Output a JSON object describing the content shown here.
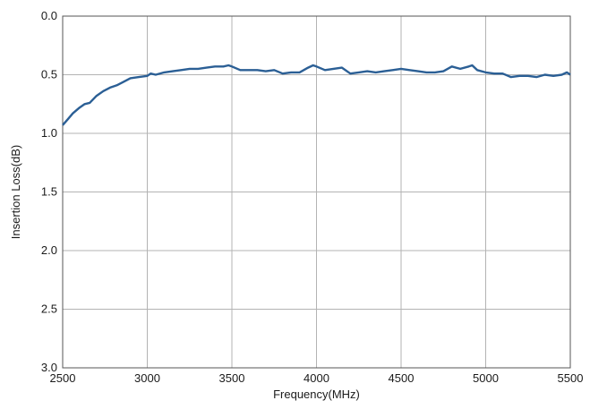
{
  "chart_data": {
    "type": "line",
    "title": "",
    "xlabel": "Frequency(MHz)",
    "ylabel": "Insertion Loss(dB)",
    "xlim": [
      2500,
      5500
    ],
    "ylim": [
      3.0,
      0.0
    ],
    "y_axis_inverted": true,
    "grid": true,
    "legend": "none",
    "x_ticks": [
      "2500",
      "3000",
      "3500",
      "4000",
      "4500",
      "5000",
      "5500"
    ],
    "y_ticks": [
      "0.0",
      "0.5",
      "1.0",
      "1.5",
      "2.0",
      "2.5",
      "3.0"
    ],
    "colors": {
      "line": "#2b5f95",
      "grid": "#b3b3b3",
      "frame": "#555555"
    },
    "series": [
      {
        "x": [
          2500,
          2530,
          2560,
          2600,
          2630,
          2660,
          2700,
          2740,
          2780,
          2820,
          2860,
          2900,
          2950,
          3000,
          3020,
          3050,
          3100,
          3150,
          3200,
          3250,
          3300,
          3350,
          3400,
          3450,
          3480,
          3500,
          3550,
          3600,
          3650,
          3700,
          3750,
          3800,
          3850,
          3900,
          3950,
          3980,
          4000,
          4050,
          4100,
          4150,
          4200,
          4250,
          4300,
          4350,
          4400,
          4450,
          4500,
          4550,
          4600,
          4650,
          4700,
          4750,
          4800,
          4850,
          4900,
          4920,
          4950,
          5000,
          5050,
          5100,
          5150,
          5200,
          5250,
          5300,
          5350,
          5400,
          5450,
          5480,
          5500
        ],
        "values": [
          0.93,
          0.88,
          0.83,
          0.78,
          0.75,
          0.74,
          0.68,
          0.64,
          0.61,
          0.59,
          0.56,
          0.53,
          0.52,
          0.51,
          0.49,
          0.5,
          0.48,
          0.47,
          0.46,
          0.45,
          0.45,
          0.44,
          0.43,
          0.43,
          0.42,
          0.43,
          0.46,
          0.46,
          0.46,
          0.47,
          0.46,
          0.49,
          0.48,
          0.48,
          0.44,
          0.42,
          0.43,
          0.46,
          0.45,
          0.44,
          0.49,
          0.48,
          0.47,
          0.48,
          0.47,
          0.46,
          0.45,
          0.46,
          0.47,
          0.48,
          0.48,
          0.47,
          0.43,
          0.45,
          0.43,
          0.42,
          0.46,
          0.48,
          0.49,
          0.49,
          0.52,
          0.51,
          0.51,
          0.52,
          0.5,
          0.51,
          0.5,
          0.48,
          0.5
        ]
      }
    ]
  }
}
